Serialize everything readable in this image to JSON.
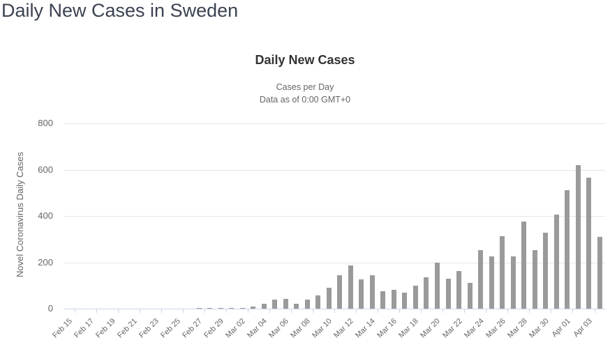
{
  "page": {
    "title": "Daily New Cases in Sweden"
  },
  "colors": {
    "bar": "#9a9a9a",
    "grid_line": "#e6e6e6",
    "axis_line": "#ccd6eb",
    "title_text": "#333333",
    "label_text": "#666666",
    "page_title_text": "#3b4251"
  },
  "chart_data": {
    "type": "bar",
    "title": "Daily New Cases",
    "subtitle1": "Cases per Day",
    "subtitle2": "Data as of 0:00 GMT+0",
    "ylabel": "Novel Coronavirus Daily Cases",
    "xlabel": "",
    "ylim": [
      0,
      800
    ],
    "yticks": [
      0,
      200,
      400,
      600,
      800
    ],
    "xtick_label_step": 2,
    "grid": true,
    "legend": false,
    "bar_color": "#9a9a9a",
    "categories": [
      "Feb 15",
      "Feb 16",
      "Feb 17",
      "Feb 18",
      "Feb 19",
      "Feb 20",
      "Feb 21",
      "Feb 22",
      "Feb 23",
      "Feb 24",
      "Feb 25",
      "Feb 26",
      "Feb 27",
      "Feb 28",
      "Feb 29",
      "Mar 01",
      "Mar 02",
      "Mar 03",
      "Mar 04",
      "Mar 05",
      "Mar 06",
      "Mar 07",
      "Mar 08",
      "Mar 09",
      "Mar 10",
      "Mar 11",
      "Mar 12",
      "Mar 13",
      "Mar 14",
      "Mar 15",
      "Mar 16",
      "Mar 17",
      "Mar 18",
      "Mar 19",
      "Mar 20",
      "Mar 21",
      "Mar 22",
      "Mar 23",
      "Mar 24",
      "Mar 25",
      "Mar 26",
      "Mar 27",
      "Mar 28",
      "Mar 29",
      "Mar 30",
      "Mar 31",
      "Apr 01",
      "Apr 02",
      "Apr 03",
      "Apr 04"
    ],
    "values": [
      0,
      0,
      0,
      0,
      0,
      0,
      0,
      0,
      0,
      0,
      0,
      1,
      4,
      2,
      2,
      2,
      2,
      10,
      20,
      40,
      43,
      20,
      40,
      57,
      91,
      144,
      186,
      125,
      145,
      74,
      80,
      70,
      99,
      134,
      197,
      130,
      161,
      110,
      252,
      227,
      313,
      227,
      375,
      252,
      328,
      406,
      511,
      620,
      564,
      311
    ]
  }
}
